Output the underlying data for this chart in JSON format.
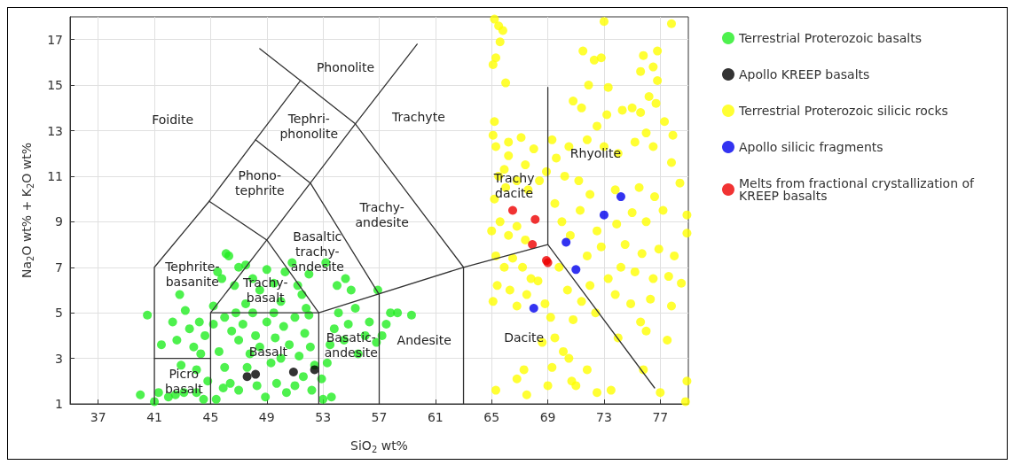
{
  "chart_data": {
    "type": "scatter",
    "xlabel": "SiO$_{2}$ wt%",
    "ylabel": "Na$_{2}$O wt% + K$_{2}$O wt%",
    "xlim": [
      35,
      79
    ],
    "ylim": [
      1,
      18
    ],
    "xticks": [
      37,
      41,
      45,
      49,
      53,
      57,
      61,
      65,
      69,
      73,
      77
    ],
    "yticks": [
      1,
      3,
      5,
      7,
      9,
      11,
      13,
      15,
      17
    ],
    "grid": true,
    "legend": "right",
    "marker": "circle",
    "series": [
      {
        "name": "Terrestrial Proterozoic basalts",
        "color": "#22ee22",
        "x": [
          40.0,
          41.0,
          41.3,
          42.0,
          41.5,
          40.5,
          42.3,
          42.8,
          42.6,
          42.9,
          43.5,
          43.2,
          43.8,
          44.2,
          44.0,
          44.5,
          44.8,
          44.3,
          45.5,
          46.3,
          46.1,
          45.8,
          45.2,
          46.7,
          47.0,
          47.5,
          48.0,
          48.5,
          49.0,
          49.5,
          50.0,
          50.3,
          50.8,
          51.2,
          51.5,
          52.0,
          51.8,
          47.5,
          46.0,
          46.5,
          47.0,
          47.3,
          47.8,
          48.2,
          48.5,
          49.0,
          49.3,
          49.6,
          50.0,
          50.2,
          50.6,
          51.0,
          51.3,
          51.7,
          52.1,
          52.4,
          45.6,
          46.0,
          46.4,
          47.0,
          47.6,
          48.3,
          48.9,
          49.7,
          50.4,
          51.0,
          51.6,
          52.2,
          45.4,
          45.9,
          53.0,
          53.6,
          52.9,
          53.3,
          53.5,
          53.8,
          54.1,
          54.5,
          54.8,
          55.3,
          55.5,
          56.0,
          56.3,
          56.8,
          57.2,
          57.5,
          57.8,
          58.3,
          59.3,
          56.9,
          55.0,
          54.0,
          53.2,
          54.6,
          45.2,
          46.8,
          48.0,
          49.5,
          52.0,
          44.6,
          44.0,
          43.1,
          42.5
        ],
        "values": [
          1.4,
          1.1,
          1.5,
          1.3,
          3.6,
          4.9,
          4.6,
          5.8,
          3.8,
          2.7,
          4.3,
          5.1,
          3.5,
          4.6,
          1.5,
          1.2,
          2.0,
          3.2,
          6.8,
          7.5,
          7.6,
          6.5,
          5.3,
          6.2,
          7.0,
          7.1,
          6.5,
          6.0,
          6.9,
          6.3,
          5.5,
          6.8,
          7.2,
          6.2,
          5.8,
          6.7,
          5.2,
          5.4,
          4.8,
          4.2,
          3.8,
          4.5,
          3.2,
          4.0,
          3.5,
          4.6,
          2.8,
          3.9,
          3.0,
          4.4,
          3.6,
          4.8,
          3.1,
          4.1,
          3.5,
          2.7,
          3.3,
          2.6,
          1.9,
          1.6,
          2.6,
          1.8,
          1.3,
          1.9,
          1.5,
          1.8,
          2.2,
          1.6,
          1.2,
          1.7,
          1.2,
          1.3,
          2.1,
          2.8,
          3.6,
          4.3,
          5.0,
          3.8,
          4.5,
          5.2,
          3.2,
          4.0,
          4.6,
          3.7,
          4.0,
          4.5,
          5.0,
          5.0,
          4.9,
          6.0,
          6.0,
          6.2,
          7.2,
          6.5,
          4.5,
          5.0,
          5.0,
          5.0,
          4.9,
          4.0,
          2.5,
          1.5,
          1.4
        ]
      },
      {
        "name": "Apollo KREEP basalts",
        "color": "#000000",
        "x": [
          47.6,
          48.2,
          50.9,
          52.4
        ],
        "values": [
          2.2,
          2.3,
          2.4,
          2.5
        ]
      },
      {
        "name": "Terrestrial Proterozoic silicic rocks",
        "color": "#ffff00",
        "x": [
          65.2,
          65.5,
          65.8,
          65.6,
          65.3,
          65.1,
          66.0,
          65.2,
          65.1,
          65.3,
          66.2,
          67.1,
          66.2,
          67.4,
          65.5,
          65.2,
          66.0,
          66.8,
          67.6,
          68.4,
          68.9,
          65.0,
          65.6,
          66.2,
          66.8,
          67.4,
          65.3,
          65.9,
          66.5,
          67.2,
          67.8,
          65.4,
          66.3,
          65.1,
          66.8,
          67.5,
          68.3,
          68.8,
          69.2,
          69.5,
          68.6,
          69.3,
          70.5,
          70.7,
          71.0,
          70.1,
          69.0,
          67.3,
          66.8,
          67.5,
          65.3,
          71.8,
          72.5,
          73.5,
          74.0,
          75.8,
          77.0,
          78.8,
          78.9,
          77.5,
          76.0,
          76.3,
          77.8,
          78.5,
          78.0,
          78.9,
          78.9,
          78.4,
          77.8,
          77.9,
          77.3,
          76.7,
          76.2,
          76.5,
          75.6,
          75.8,
          76.8,
          76.8,
          77.8,
          73.0,
          71.5,
          72.3,
          72.8,
          71.4,
          72.5,
          73.2,
          74.3,
          75.0,
          75.6,
          76.0,
          76.5,
          75.2,
          74.0,
          73.0,
          71.8,
          70.5,
          69.6,
          70.2,
          71.2,
          72.0,
          73.8,
          75.5,
          76.6,
          77.2,
          76.0,
          75.0,
          73.9,
          72.5,
          71.3,
          70.0,
          69.5,
          70.6,
          71.8,
          72.8,
          74.5,
          75.7,
          76.9,
          77.6,
          76.5,
          75.2,
          74.2,
          73.3,
          72.0,
          71.4,
          70.4,
          69.8,
          73.8,
          74.9,
          72.4,
          70.8,
          75.6,
          65.9,
          68.0,
          69.3,
          70.8,
          71.9,
          73.3
        ],
        "values": [
          17.9,
          17.6,
          17.4,
          16.9,
          16.2,
          15.9,
          15.1,
          13.4,
          12.8,
          12.3,
          12.5,
          12.7,
          11.9,
          11.5,
          11.0,
          10.0,
          10.5,
          10.8,
          10.4,
          10.8,
          11.2,
          8.6,
          9.0,
          8.4,
          8.8,
          8.2,
          7.5,
          7.0,
          7.4,
          7.0,
          6.5,
          6.2,
          6.0,
          5.5,
          5.3,
          5.8,
          6.4,
          5.4,
          4.8,
          3.9,
          3.7,
          2.6,
          3.0,
          2.0,
          1.8,
          3.3,
          1.8,
          2.5,
          2.1,
          1.4,
          1.6,
          2.5,
          1.5,
          1.6,
          3.9,
          2.5,
          1.5,
          1.1,
          2.0,
          3.8,
          4.2,
          5.6,
          5.3,
          6.3,
          7.5,
          8.5,
          9.3,
          10.7,
          11.6,
          12.8,
          13.4,
          14.2,
          14.5,
          15.8,
          15.6,
          16.3,
          16.5,
          15.2,
          17.7,
          17.8,
          16.5,
          16.1,
          16.2,
          14.0,
          13.2,
          13.7,
          13.9,
          14.0,
          13.8,
          12.9,
          12.3,
          12.5,
          12.0,
          12.3,
          12.6,
          12.3,
          11.8,
          11.0,
          10.8,
          10.2,
          10.4,
          10.5,
          10.1,
          9.5,
          9.0,
          9.4,
          8.9,
          8.6,
          9.5,
          9.0,
          9.8,
          8.4,
          7.5,
          7.9,
          8.0,
          7.6,
          7.8,
          6.6,
          6.5,
          6.8,
          7.0,
          6.5,
          6.2,
          5.5,
          6.0,
          7.0,
          5.8,
          5.4,
          5.0,
          4.7,
          4.6,
          11.3,
          12.2,
          12.6,
          14.3,
          15.0,
          14.9
        ]
      },
      {
        "name": "Apollo silicic fragments",
        "color": "#0000ee",
        "x": [
          68.0,
          70.3,
          71.0,
          73.0,
          74.2
        ],
        "values": [
          5.2,
          8.1,
          6.9,
          9.3,
          10.1
        ]
      },
      {
        "name": "Melts from fractional crystallization of KREEP basalts",
        "color": "#ee0000",
        "x": [
          66.5,
          68.1,
          67.9,
          68.9,
          69.0
        ],
        "values": [
          9.5,
          9.1,
          8.0,
          7.3,
          7.2
        ]
      },
      {
        "type": "line",
        "marker": "none",
        "line_style": "solid",
        "color": "#333333",
        "x": [
          41,
          41,
          44.9,
          48.2,
          51.4
        ],
        "values": [
          1,
          7,
          9.9,
          12.6,
          15.2
        ]
      },
      {
        "type": "line",
        "marker": "none",
        "line_style": "solid",
        "color": "#333333",
        "x": [
          48.5,
          51.4,
          55.3,
          63,
          63
        ],
        "values": [
          16.6,
          15.2,
          13.3,
          7,
          1
        ]
      },
      {
        "type": "line",
        "marker": "none",
        "line_style": "solid",
        "color": "#333333",
        "x": [
          44.9,
          49,
          52.1,
          55.3,
          59.7
        ],
        "values": [
          9.9,
          8.2,
          10.7,
          13.3,
          16.8
        ]
      },
      {
        "type": "line",
        "marker": "none",
        "line_style": "solid",
        "color": "#333333",
        "x": [
          48.2,
          52.1,
          57,
          57
        ],
        "values": [
          12.6,
          10.7,
          5.8,
          1
        ]
      },
      {
        "type": "line",
        "marker": "none",
        "line_style": "solid",
        "color": "#333333",
        "x": [
          41,
          45
        ],
        "values": [
          3,
          3
        ]
      },
      {
        "type": "line",
        "marker": "none",
        "line_style": "solid",
        "color": "#333333",
        "x": [
          45,
          45,
          49,
          52.7,
          52.7
        ],
        "values": [
          1,
          5,
          8.2,
          5,
          1
        ]
      },
      {
        "type": "line",
        "marker": "none",
        "line_style": "solid",
        "color": "#333333",
        "x": [
          45,
          52.7,
          63,
          69,
          69
        ],
        "values": [
          5,
          5,
          7,
          8,
          14.9
        ]
      },
      {
        "type": "line",
        "marker": "none",
        "line_style": "solid",
        "color": "#333333",
        "x": [
          69,
          76.6
        ],
        "values": [
          8,
          1.7
        ]
      }
    ],
    "annotations": [
      "Phonolite",
      "Foidite",
      "Tephri-\nphonolite",
      "Trachyte",
      "Phono-\ntephrite",
      "Trachy-\nandesite",
      "Basaltic\ntrachy-\nandesite",
      "Tephrite-\nbasanite",
      "Trachy-\nbasalt",
      "Basalt",
      "Basatic-\nandesite",
      "Andesite",
      "Picro\nbasalt",
      "Trachy\ndacite",
      "Rhyolite",
      "Dacite"
    ]
  }
}
